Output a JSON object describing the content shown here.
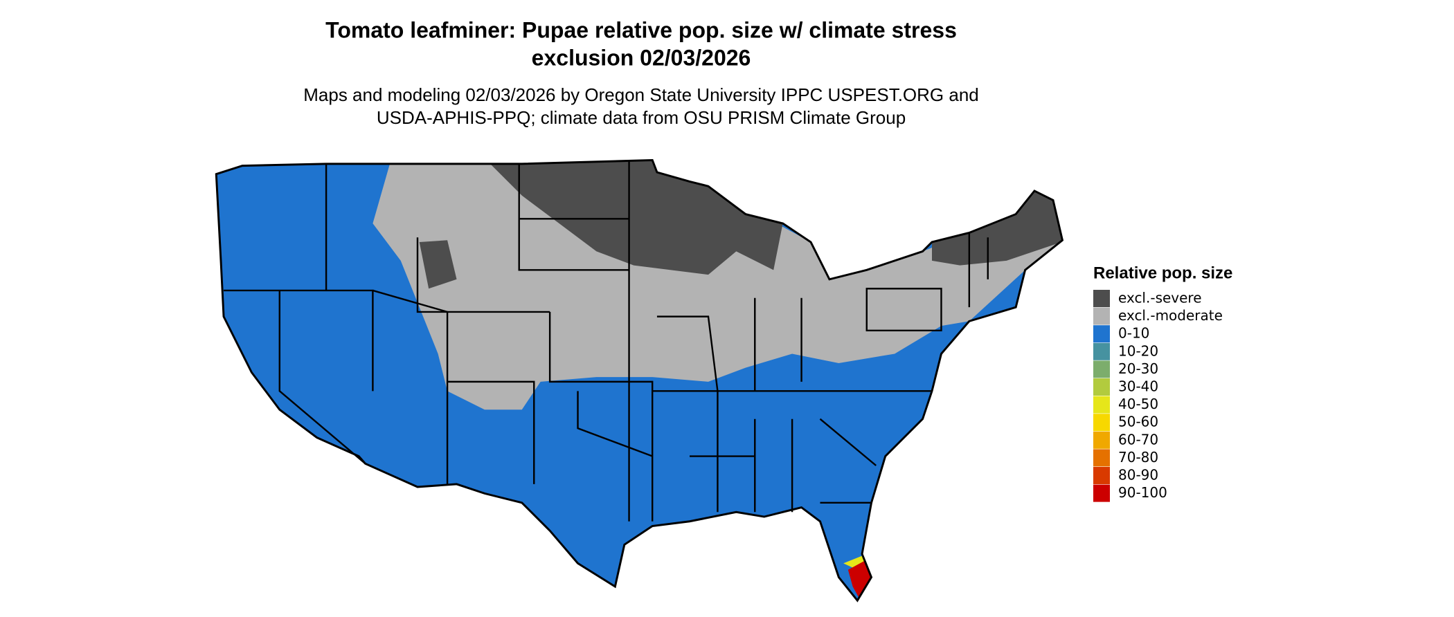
{
  "title": [
    "Tomato leafminer: Pupae relative pop. size w/ climate stress",
    "exclusion 02/03/2026"
  ],
  "subtitle": [
    "Maps and modeling 02/03/2026 by Oregon State University IPPC USPEST.ORG and",
    "USDA-APHIS-PPQ; climate data from OSU PRISM Climate Group"
  ],
  "legend": {
    "title": "Relative pop. size",
    "items": [
      {
        "label": "excl.-severe",
        "color": "#4d4d4d"
      },
      {
        "label": "excl.-moderate",
        "color": "#b3b3b3"
      },
      {
        "label": "0-10",
        "color": "#1f74cf"
      },
      {
        "label": "10-20",
        "color": "#4692a0"
      },
      {
        "label": "20-30",
        "color": "#7cad6c"
      },
      {
        "label": "30-40",
        "color": "#b2cb3e"
      },
      {
        "label": "40-50",
        "color": "#e6e61a"
      },
      {
        "label": "50-60",
        "color": "#f7d800"
      },
      {
        "label": "60-70",
        "color": "#f0a800"
      },
      {
        "label": "70-80",
        "color": "#e57100"
      },
      {
        "label": "80-90",
        "color": "#d93a00"
      },
      {
        "label": "90-100",
        "color": "#cc0000"
      }
    ]
  }
}
